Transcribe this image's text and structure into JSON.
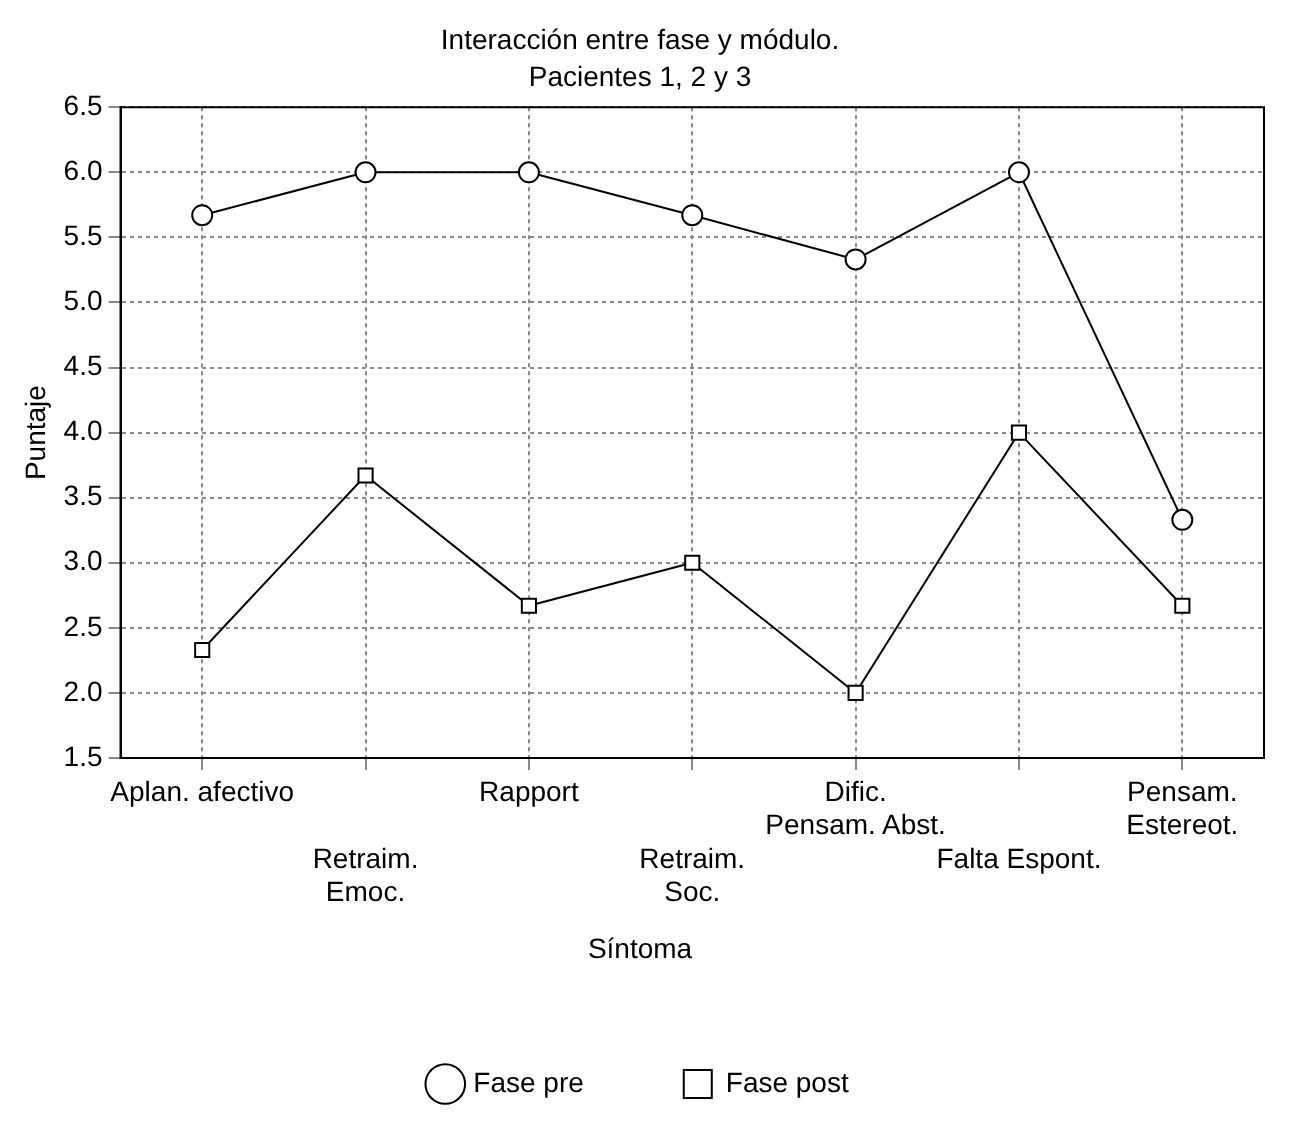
{
  "chart_data": {
    "type": "line",
    "title": "Interacción entre fase y módulo.",
    "subtitle": "Pacientes 1, 2 y 3",
    "ylabel": "Puntaje",
    "legend_title": "Síntoma",
    "categories": [
      "Aplan. afectivo",
      "Retraim.\nEmoc.",
      "Rapport",
      "Retraim.\nSoc.",
      "Dific.\nPensam. Abst.",
      "Falta Espont.",
      "Pensam.\nEstereot."
    ],
    "series": [
      {
        "name": "Fase pre",
        "color": "#000000",
        "marker": "circle",
        "values": [
          5.67,
          6.0,
          6.0,
          5.67,
          5.33,
          6.0,
          3.33
        ]
      },
      {
        "name": "Fase post",
        "color": "#000000",
        "marker": "square",
        "values": [
          2.33,
          3.67,
          2.67,
          3.0,
          2.0,
          4.0,
          2.67
        ]
      }
    ],
    "ylim": [
      1.5,
      6.5
    ],
    "yticks": [
      1.5,
      {
        "value": 2,
        "label": "2.0"
      },
      2.5,
      {
        "value": 3,
        "label": "3.0"
      },
      3.5,
      {
        "value": 4,
        "label": "4.0"
      },
      4.5,
      {
        "value": 5,
        "label": "5.0"
      },
      5.5,
      {
        "value": 6,
        "label": "6.0"
      },
      6.5
    ],
    "grid": true,
    "legend": "bottom",
    "line_style": "solid"
  }
}
